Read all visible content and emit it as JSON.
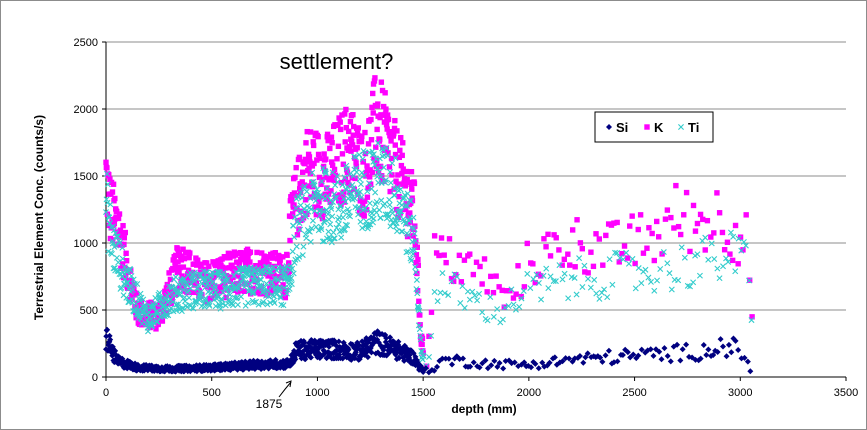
{
  "chart_data": {
    "type": "scatter",
    "xlabel": "depth (mm)",
    "ylabel": "Terrestrial Element Conc. (counts/s)",
    "xlim": [
      0,
      3500
    ],
    "ylim": [
      0,
      2500
    ],
    "x_ticks": [
      0,
      500,
      1000,
      1500,
      2000,
      2500,
      3000,
      3500
    ],
    "y_ticks": [
      0,
      500,
      1000,
      1500,
      2000,
      2500
    ],
    "grid": "horizontal",
    "legend_position": "top-right",
    "annotations": [
      {
        "text": "settlement?",
        "x": 1090,
        "y": 2300
      },
      {
        "text": "1875",
        "x": 875,
        "y": 0
      }
    ],
    "series": [
      {
        "name": "Si",
        "color": "#000080",
        "marker": "diamond",
        "profile": [
          [
            0,
            300
          ],
          [
            50,
            120
          ],
          [
            150,
            70
          ],
          [
            300,
            60
          ],
          [
            500,
            70
          ],
          [
            700,
            90
          ],
          [
            870,
            100
          ],
          [
            900,
            200
          ],
          [
            1050,
            210
          ],
          [
            1200,
            190
          ],
          [
            1280,
            260
          ],
          [
            1350,
            220
          ],
          [
            1450,
            150
          ],
          [
            1490,
            60
          ],
          [
            1530,
            40
          ],
          [
            1600,
            130
          ],
          [
            1800,
            100
          ],
          [
            2000,
            90
          ],
          [
            2200,
            130
          ],
          [
            2400,
            150
          ],
          [
            2600,
            170
          ],
          [
            2800,
            190
          ],
          [
            2950,
            230
          ],
          [
            3030,
            160
          ],
          [
            3050,
            20
          ]
        ]
      },
      {
        "name": "K",
        "color": "#ff00ff",
        "marker": "square",
        "profile": [
          [
            0,
            1500
          ],
          [
            20,
            1250
          ],
          [
            60,
            1100
          ],
          [
            150,
            480
          ],
          [
            250,
            450
          ],
          [
            350,
            850
          ],
          [
            450,
            700
          ],
          [
            550,
            750
          ],
          [
            700,
            800
          ],
          [
            850,
            750
          ],
          [
            880,
            1200
          ],
          [
            950,
            1550
          ],
          [
            1050,
            1500
          ],
          [
            1150,
            1700
          ],
          [
            1220,
            1500
          ],
          [
            1280,
            1900
          ],
          [
            1330,
            1700
          ],
          [
            1400,
            1450
          ],
          [
            1460,
            1200
          ],
          [
            1490,
            300
          ],
          [
            1520,
            60
          ],
          [
            1550,
            900
          ],
          [
            1650,
            850
          ],
          [
            1800,
            750
          ],
          [
            1900,
            550
          ],
          [
            2000,
            850
          ],
          [
            2200,
            1000
          ],
          [
            2400,
            950
          ],
          [
            2600,
            1050
          ],
          [
            2700,
            1200
          ],
          [
            2800,
            1150
          ],
          [
            2900,
            1200
          ],
          [
            3040,
            1000
          ],
          [
            3060,
            250
          ]
        ]
      },
      {
        "name": "Ti",
        "color": "#33cccc",
        "marker": "x",
        "profile": [
          [
            0,
            1300
          ],
          [
            30,
            1000
          ],
          [
            100,
            700
          ],
          [
            200,
            430
          ],
          [
            300,
            600
          ],
          [
            400,
            650
          ],
          [
            550,
            650
          ],
          [
            700,
            680
          ],
          [
            860,
            680
          ],
          [
            900,
            1100
          ],
          [
            1000,
            1300
          ],
          [
            1100,
            1250
          ],
          [
            1200,
            1400
          ],
          [
            1300,
            1450
          ],
          [
            1380,
            1350
          ],
          [
            1460,
            1000
          ],
          [
            1490,
            200
          ],
          [
            1520,
            50
          ],
          [
            1560,
            700
          ],
          [
            1700,
            600
          ],
          [
            1850,
            480
          ],
          [
            2000,
            650
          ],
          [
            2200,
            720
          ],
          [
            2400,
            760
          ],
          [
            2600,
            790
          ],
          [
            2800,
            850
          ],
          [
            2950,
            900
          ],
          [
            3040,
            850
          ],
          [
            3060,
            150
          ]
        ]
      }
    ]
  }
}
